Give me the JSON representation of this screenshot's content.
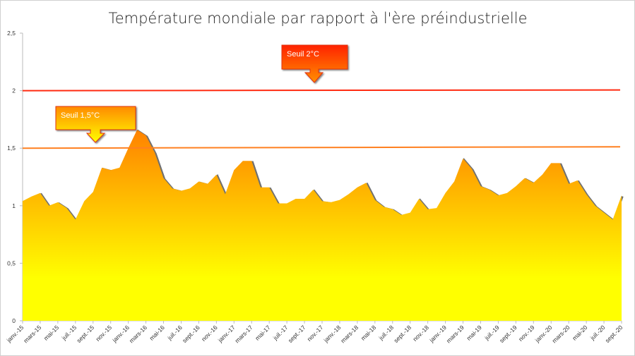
{
  "chart_data": {
    "type": "area",
    "title": "Température mondiale par rapport à l'ère préindustrielle",
    "xlabel": "",
    "ylabel": "",
    "ylim": [
      0,
      2.5
    ],
    "y_ticks": [
      "0",
      "0,5",
      "1",
      "1,5",
      "2",
      "2,5"
    ],
    "y_tick_values": [
      0,
      0.5,
      1,
      1.5,
      2,
      2.5
    ],
    "x_frequency": "monthly",
    "x_range": [
      "janv.-15",
      "sept.-20"
    ],
    "x_tick_labels": [
      "janv.-15",
      "mars-15",
      "mai-15",
      "juil.-15",
      "sept.-15",
      "nov.-15",
      "janv.-16",
      "mars-16",
      "mai-16",
      "juil.-16",
      "sept.-16",
      "nov.-16",
      "janv.-17",
      "mars-17",
      "mai-17",
      "juil.-17",
      "sept.-17",
      "nov.-17",
      "janv.-18",
      "mars-18",
      "mai-18",
      "juil.-18",
      "sept.-18",
      "nov.-18",
      "janv.-19",
      "mars-19",
      "mai-19",
      "juil.-19",
      "sept.-19",
      "nov.-19",
      "janv.-20",
      "mars-20",
      "mai-20",
      "juil.-20",
      "sept.-20"
    ],
    "values": [
      1.04,
      1.08,
      1.11,
      1.0,
      1.03,
      0.98,
      0.88,
      1.04,
      1.12,
      1.33,
      1.31,
      1.33,
      1.5,
      1.66,
      1.61,
      1.46,
      1.24,
      1.15,
      1.13,
      1.15,
      1.21,
      1.19,
      1.27,
      1.1,
      1.31,
      1.39,
      1.39,
      1.16,
      1.16,
      1.02,
      1.02,
      1.06,
      1.06,
      1.14,
      1.04,
      1.03,
      1.05,
      1.1,
      1.16,
      1.2,
      1.05,
      0.99,
      0.97,
      0.92,
      0.94,
      1.06,
      0.97,
      0.98,
      1.11,
      1.21,
      1.41,
      1.32,
      1.17,
      1.14,
      1.09,
      1.11,
      1.17,
      1.24,
      1.2,
      1.27,
      1.37,
      1.37,
      1.19,
      1.22,
      1.1,
      1.0,
      0.94,
      0.88,
      1.09
    ],
    "fill_gradient": [
      "#ff7f00",
      "#ffff00"
    ],
    "grid": false,
    "legend": "none",
    "thresholds": [
      {
        "label": "Seuil 2°C",
        "value": 2.0,
        "color": "#ff2a10"
      },
      {
        "label": "Seuil 1,5°C",
        "value": 1.5,
        "color": "#ff8020"
      }
    ]
  }
}
